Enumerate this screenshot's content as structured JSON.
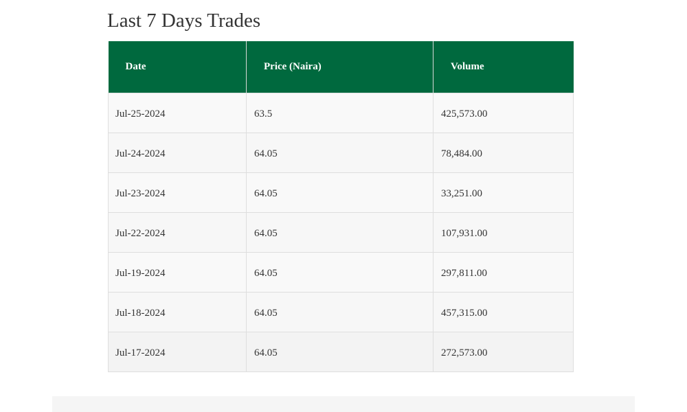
{
  "title": "Last 7 Days Trades",
  "table": {
    "headers": {
      "date": "Date",
      "price": "Price (Naira)",
      "volume": "Volume"
    },
    "rows": [
      {
        "date": "Jul-25-2024",
        "price": "63.5",
        "volume": "425,573.00"
      },
      {
        "date": "Jul-24-2024",
        "price": "64.05",
        "volume": "78,484.00"
      },
      {
        "date": "Jul-23-2024",
        "price": "64.05",
        "volume": "33,251.00"
      },
      {
        "date": "Jul-22-2024",
        "price": "64.05",
        "volume": "107,931.00"
      },
      {
        "date": "Jul-19-2024",
        "price": "64.05",
        "volume": "297,811.00"
      },
      {
        "date": "Jul-18-2024",
        "price": "64.05",
        "volume": "457,315.00"
      },
      {
        "date": "Jul-17-2024",
        "price": "64.05",
        "volume": "272,573.00"
      }
    ]
  },
  "colors": {
    "header_bg": "#00693e",
    "header_text": "#ffffff"
  }
}
